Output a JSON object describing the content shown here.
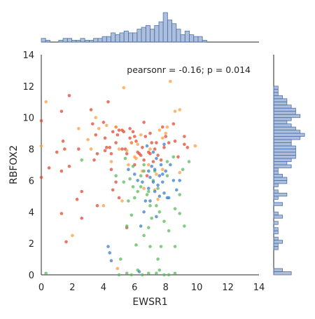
{
  "chart_data": {
    "type": "scatter",
    "xlabel": "EWSR1",
    "ylabel": "RBFOX2",
    "xlim": [
      0,
      14
    ],
    "ylim": [
      0,
      14
    ],
    "xticks": [
      "0",
      "2",
      "4",
      "6",
      "8",
      "10",
      "12",
      "14"
    ],
    "yticks": [
      "0",
      "2",
      "4",
      "6",
      "8",
      "10",
      "12",
      "14"
    ],
    "annotation": "pearsonr = -0.16; p = 0.014",
    "marginal_histograms": {
      "top": "EWSR1 distribution",
      "right": "RBFOX2 distribution",
      "color": "#4C72B0"
    },
    "colors": {
      "red": "#E24A33",
      "orange": "#FF9E3D",
      "green": "#5CB85C",
      "blue": "#3B7FC4",
      "hist": "#4C72B0"
    },
    "series": [
      {
        "color": "#E24A33",
        "points": [
          [
            0,
            9.8
          ],
          [
            0,
            6.2
          ],
          [
            0.5,
            6.8
          ],
          [
            1,
            7.8
          ],
          [
            1.3,
            6.6
          ],
          [
            1.4,
            8.5
          ],
          [
            1.5,
            8.0
          ],
          [
            1.3,
            10.4
          ],
          [
            1.8,
            11.4
          ],
          [
            1.8,
            6.9
          ],
          [
            1.3,
            3.9
          ],
          [
            1.6,
            2.1
          ],
          [
            2.4,
            8.0
          ],
          [
            2.6,
            5.3
          ],
          [
            2.6,
            3.6
          ],
          [
            3.2,
            10.5
          ],
          [
            3.3,
            9.6
          ],
          [
            3.5,
            8.9
          ],
          [
            3.6,
            7.7
          ],
          [
            3.4,
            7.3
          ],
          [
            3.6,
            4.4
          ],
          [
            4.0,
            9.7
          ],
          [
            4.1,
            8.7
          ],
          [
            4.2,
            8.1
          ],
          [
            4.1,
            7.9
          ],
          [
            4.3,
            11.0
          ],
          [
            4.4,
            8.1
          ],
          [
            4.5,
            7.7
          ],
          [
            4.5,
            6.7
          ],
          [
            4.6,
            9.1
          ],
          [
            4.8,
            9.4
          ],
          [
            4.8,
            8.4
          ],
          [
            4.9,
            8.9
          ],
          [
            5.0,
            9.2
          ],
          [
            5.2,
            8.0
          ],
          [
            5.2,
            9.2
          ],
          [
            5.3,
            9.1
          ],
          [
            5.4,
            8.0
          ],
          [
            5.5,
            7.7
          ],
          [
            5.7,
            9.3
          ],
          [
            5.7,
            8.7
          ],
          [
            5.8,
            8.4
          ],
          [
            5.9,
            9.1
          ],
          [
            6.0,
            8.8
          ],
          [
            6.0,
            7.0
          ],
          [
            6.1,
            8.5
          ],
          [
            6.2,
            7.8
          ],
          [
            6.3,
            7.7
          ],
          [
            6.4,
            7.6
          ],
          [
            6.5,
            8.1
          ],
          [
            6.6,
            7.3
          ],
          [
            6.6,
            9.7
          ],
          [
            6.7,
            8.8
          ],
          [
            6.9,
            7.8
          ],
          [
            7.0,
            7.7
          ],
          [
            7.0,
            9.0
          ],
          [
            7.1,
            8.4
          ],
          [
            7.2,
            7.2
          ],
          [
            7.3,
            8.0
          ],
          [
            7.4,
            8.4
          ],
          [
            7.5,
            7.6
          ],
          [
            7.7,
            7.3
          ],
          [
            7.8,
            9.4
          ],
          [
            7.9,
            8.1
          ],
          [
            8.0,
            8.8
          ],
          [
            8.2,
            8.4
          ],
          [
            8.5,
            9.6
          ],
          [
            8.6,
            8.5
          ],
          [
            8.8,
            7.5
          ],
          [
            9.2,
            8.3
          ],
          [
            9.4,
            8.1
          ],
          [
            9.2,
            8.8
          ],
          [
            5.5,
            3.0
          ],
          [
            6.8,
            6.3
          ],
          [
            4.6,
            5.4
          ],
          [
            4.8,
            5.9
          ],
          [
            2.3,
            4.8
          ],
          [
            5.0,
            4.9
          ]
        ]
      },
      {
        "color": "#FF9E3D",
        "points": [
          [
            0.3,
            11.0
          ],
          [
            0,
            8.2
          ],
          [
            2.0,
            2.5
          ],
          [
            2.4,
            9.3
          ],
          [
            3.0,
            8.6
          ],
          [
            3.2,
            8.0
          ],
          [
            3.5,
            10.0
          ],
          [
            3.7,
            9.3
          ],
          [
            4.0,
            4.4
          ],
          [
            4.2,
            9.5
          ],
          [
            4.8,
            9.4
          ],
          [
            5.3,
            11.9
          ],
          [
            5.0,
            8.0
          ],
          [
            5.6,
            7.0
          ],
          [
            5.8,
            8.4
          ],
          [
            6.0,
            7.5
          ],
          [
            6.1,
            7.4
          ],
          [
            6.2,
            8.3
          ],
          [
            6.4,
            8.9
          ],
          [
            6.5,
            6.6
          ],
          [
            6.6,
            5.5
          ],
          [
            6.9,
            7.0
          ],
          [
            7.0,
            8.0
          ],
          [
            7.3,
            5.4
          ],
          [
            7.5,
            4.8
          ],
          [
            7.6,
            9.2
          ],
          [
            7.8,
            6.7
          ],
          [
            7.8,
            8.7
          ],
          [
            8.0,
            9.0
          ],
          [
            8.3,
            12.3
          ],
          [
            8.6,
            10.4
          ],
          [
            8.9,
            10.5
          ],
          [
            8.9,
            6.5
          ],
          [
            9.9,
            8.2
          ],
          [
            4.9,
            0.4
          ],
          [
            5.2,
            4.7
          ],
          [
            5.5,
            7.9
          ],
          [
            7.4,
            6.4
          ],
          [
            8.1,
            9.4
          ],
          [
            4.5,
            7.2
          ]
        ]
      },
      {
        "color": "#5CB85C",
        "points": [
          [
            0.3,
            0.1
          ],
          [
            5.0,
            0
          ],
          [
            5.5,
            0.1
          ],
          [
            5.8,
            0
          ],
          [
            6.2,
            0.3
          ],
          [
            6.5,
            0
          ],
          [
            6.9,
            0.1
          ],
          [
            7.4,
            0.1
          ],
          [
            7.6,
            0.3
          ],
          [
            7.9,
            0
          ],
          [
            8.2,
            0
          ],
          [
            8.6,
            0.1
          ],
          [
            5.1,
            1.0
          ],
          [
            6.1,
            1.9
          ],
          [
            6.6,
            2.5
          ],
          [
            7.0,
            1.8
          ],
          [
            7.5,
            1.0
          ],
          [
            7.7,
            1.8
          ],
          [
            8.6,
            1.8
          ],
          [
            5.5,
            3.1
          ],
          [
            5.6,
            4.7
          ],
          [
            5.8,
            3.8
          ],
          [
            6.0,
            4.9
          ],
          [
            6.2,
            5.3
          ],
          [
            6.4,
            5.6
          ],
          [
            6.4,
            6.3
          ],
          [
            6.6,
            6.6
          ],
          [
            6.9,
            5.3
          ],
          [
            7.0,
            4.4
          ],
          [
            7.2,
            6.0
          ],
          [
            7.3,
            6.6
          ],
          [
            7.4,
            4.4
          ],
          [
            7.5,
            5.5
          ],
          [
            7.9,
            3.4
          ],
          [
            8.1,
            6.3
          ],
          [
            8.6,
            4.2
          ],
          [
            8.9,
            5.1
          ],
          [
            8.9,
            3.9
          ],
          [
            9.2,
            3.1
          ],
          [
            9.1,
            6.7
          ],
          [
            9.5,
            7.2
          ],
          [
            8.5,
            7.5
          ],
          [
            5.4,
            7.4
          ],
          [
            5.7,
            6.1
          ],
          [
            5.9,
            5.6
          ],
          [
            6.8,
            5.1
          ],
          [
            6.9,
            3.0
          ],
          [
            7.6,
            4.0
          ],
          [
            8.2,
            2.8
          ],
          [
            5.3,
            5.9
          ],
          [
            4.8,
            6.3
          ],
          [
            2.6,
            7.3
          ],
          [
            6.6,
            7.0
          ],
          [
            5.9,
            6.9
          ],
          [
            8.1,
            7.2
          ],
          [
            7.1,
            3.6
          ]
        ]
      },
      {
        "color": "#3B7FC4",
        "points": [
          [
            4.3,
            1.8
          ],
          [
            4.4,
            1.4
          ],
          [
            4.5,
            0.9
          ],
          [
            6.3,
            0.2
          ],
          [
            6.4,
            3.1
          ],
          [
            6.6,
            4.0
          ],
          [
            6.7,
            4.7
          ],
          [
            6.9,
            5.5
          ],
          [
            7.0,
            6.2
          ],
          [
            7.1,
            6.9
          ],
          [
            7.2,
            5.9
          ],
          [
            7.3,
            6.7
          ],
          [
            7.4,
            7.4
          ],
          [
            7.5,
            5.7
          ],
          [
            7.6,
            6.3
          ],
          [
            7.7,
            7.0
          ],
          [
            7.8,
            6.4
          ],
          [
            7.9,
            5.2
          ],
          [
            8.0,
            6.6
          ],
          [
            8.2,
            4.9
          ],
          [
            8.3,
            7.0
          ],
          [
            8.5,
            6.0
          ],
          [
            8.7,
            5.4
          ],
          [
            7.0,
            4.7
          ],
          [
            6.5,
            5.9
          ],
          [
            7.2,
            7.8
          ],
          [
            5.6,
            6.7
          ],
          [
            6.2,
            6.0
          ],
          [
            6.8,
            8.2
          ],
          [
            7.9,
            8.3
          ],
          [
            7.4,
            3.7
          ],
          [
            8.1,
            4.9
          ],
          [
            7.6,
            5.0
          ],
          [
            6.9,
            6.6
          ],
          [
            7.3,
            5.3
          ],
          [
            7.8,
            5.9
          ],
          [
            6.0,
            6.4
          ],
          [
            8.9,
            6.0
          ]
        ]
      }
    ],
    "hist_x_counts": [
      2,
      1,
      0,
      0,
      1,
      2,
      2,
      1,
      1,
      2,
      1,
      1,
      2,
      2,
      3,
      3,
      5,
      4,
      5,
      6,
      5,
      5,
      7,
      8,
      9,
      7,
      9,
      11,
      16,
      12,
      10,
      7,
      4,
      6,
      4,
      3,
      3,
      1,
      0,
      0,
      0,
      0,
      0,
      0,
      0,
      0,
      0,
      0,
      0,
      0
    ],
    "hist_y_counts": [
      4,
      2,
      0,
      0,
      0,
      0,
      0,
      0,
      1,
      1,
      2,
      1,
      0,
      1,
      1,
      0,
      1,
      0,
      2,
      1,
      0,
      0,
      2,
      0,
      1,
      3,
      1,
      0,
      1,
      3,
      3,
      2,
      1,
      1,
      4,
      3,
      4,
      5,
      5,
      5,
      5,
      4,
      4,
      6,
      7,
      6,
      5,
      4,
      3,
      4,
      6,
      5,
      5,
      4,
      3,
      3,
      2,
      1,
      1,
      1,
      0,
      0,
      0,
      0,
      0,
      0,
      0,
      0,
      0,
      0
    ]
  }
}
